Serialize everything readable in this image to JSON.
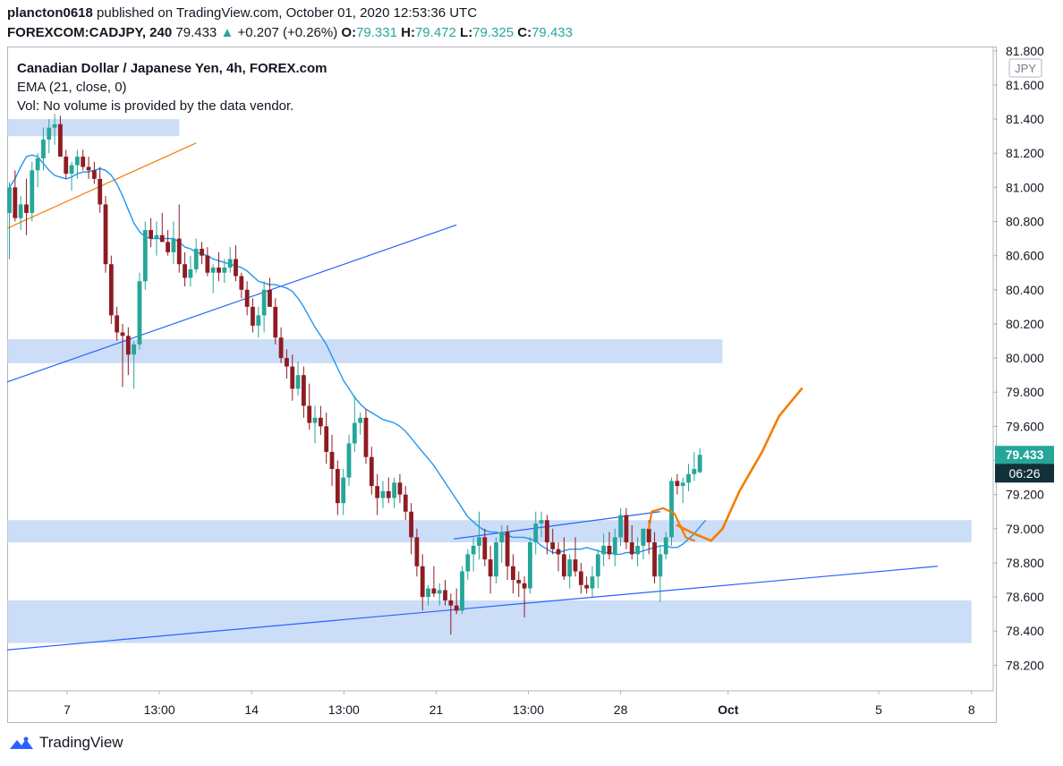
{
  "header": {
    "publisher": "plancton0618",
    "published_text": "published on TradingView.com, October 01, 2020 12:53:36 UTC",
    "symbol": "FOREXCOM:CADJPY, 240",
    "price": "79.433",
    "change": "+0.207 (+0.26%)",
    "open_label": "O:",
    "open": "79.331",
    "high_label": "H:",
    "high": "79.472",
    "low_label": "L:",
    "low": "79.325",
    "close_label": "C:",
    "close": "79.433"
  },
  "legend": {
    "title": "Canadian Dollar / Japanese Yen, 4h, FOREX.com",
    "ema": "EMA (21, close, 0)",
    "volume": "Vol: No volume is provided by the data vendor."
  },
  "brand": {
    "name": "TradingView"
  },
  "colors": {
    "up": "#26a69a",
    "down": "#8e1c22",
    "ema": "#2196f3",
    "zone": "#bbd1f6",
    "trend": "#2962ff",
    "orange": "#f57c00",
    "last_price": "#26a69a",
    "countdown_bg": "#11303a"
  },
  "chart_data": {
    "type": "candlestick",
    "title": "Canadian Dollar / Japanese Yen, 4h, FOREX.com",
    "currency_label": "JPY",
    "last_price": "79.433",
    "countdown": "06:26",
    "ylim": [
      78.05,
      81.82
    ],
    "y_ticks": [
      "81.800",
      "81.600",
      "81.400",
      "81.200",
      "81.000",
      "80.800",
      "80.600",
      "80.400",
      "80.200",
      "80.000",
      "79.800",
      "79.600",
      "79.400",
      "79.200",
      "79.000",
      "78.800",
      "78.600",
      "78.400",
      "78.200"
    ],
    "x_ticks": [
      {
        "label": "7",
        "bar": 10.2
      },
      {
        "label": "13:00",
        "bar": 26.5
      },
      {
        "label": "14",
        "bar": 42.8
      },
      {
        "label": "13:00",
        "bar": 59.1
      },
      {
        "label": "21",
        "bar": 75.4
      },
      {
        "label": "13:00",
        "bar": 91.7
      },
      {
        "label": "28",
        "bar": 108.0
      },
      {
        "label": "Oct",
        "bar": 127.0
      },
      {
        "label": "5",
        "bar": 153.6
      },
      {
        "label": "8",
        "bar": 170.0
      }
    ],
    "x_tick_bold": [
      "Oct"
    ],
    "zones": [
      {
        "from_bar": 0,
        "to_bar": 30,
        "low": 81.3,
        "high": 81.4
      },
      {
        "from_bar": 0,
        "to_bar": 126,
        "low": 79.97,
        "high": 80.11
      },
      {
        "from_bar": 0,
        "to_bar": 170,
        "low": 78.92,
        "high": 79.05
      },
      {
        "from_bar": 0,
        "to_bar": 170,
        "low": 78.33,
        "high": 78.58
      }
    ],
    "trend_lines": [
      {
        "color": "trend",
        "x1": 0,
        "y1": 79.86,
        "x2": 79,
        "y2": 80.78
      },
      {
        "color": "trend",
        "x1": 0,
        "y1": 78.29,
        "x2": 164,
        "y2": 78.78
      },
      {
        "color": "trend",
        "x1": 79,
        "y1": 78.94,
        "x2": 115,
        "y2": 79.1
      },
      {
        "color": "orange",
        "x1": 0,
        "y1": 80.76,
        "x2": 33,
        "y2": 81.26
      }
    ],
    "projection": [
      [
        118,
        79.02
      ],
      [
        121,
        78.97
      ],
      [
        124,
        78.93
      ],
      [
        126,
        79.0
      ],
      [
        129,
        79.22
      ],
      [
        133,
        79.45
      ],
      [
        136,
        79.66
      ],
      [
        140,
        79.82
      ]
    ],
    "hook": [
      [
        113,
        79.0
      ],
      [
        113.5,
        79.1
      ],
      [
        115.5,
        79.12
      ],
      [
        117.5,
        79.09
      ],
      [
        118.5,
        79.02
      ],
      [
        119.5,
        78.95
      ],
      [
        121,
        78.93
      ]
    ],
    "ema": [
      81.0,
      81.05,
      81.12,
      81.18,
      81.19,
      81.18,
      81.14,
      81.1,
      81.07,
      81.06,
      81.05,
      81.06,
      81.08,
      81.09,
      81.09,
      81.1,
      81.11,
      81.1,
      81.07,
      81.02,
      80.95,
      80.87,
      80.79,
      80.74,
      80.71,
      80.7,
      80.7,
      80.7,
      80.7,
      80.7,
      80.68,
      80.65,
      80.64,
      80.62,
      80.61,
      80.6,
      80.58,
      80.57,
      80.56,
      80.55,
      80.54,
      80.53,
      80.51,
      80.48,
      80.45,
      80.44,
      80.43,
      80.43,
      80.42,
      80.41,
      80.39,
      80.35,
      80.3,
      80.24,
      80.18,
      80.13,
      80.08,
      80.01,
      79.94,
      79.87,
      79.82,
      79.77,
      79.73,
      79.7,
      79.68,
      79.66,
      79.64,
      79.63,
      79.62,
      79.6,
      79.57,
      79.53,
      79.49,
      79.45,
      79.41,
      79.37,
      79.32,
      79.27,
      79.22,
      79.17,
      79.12,
      79.07,
      79.04,
      79.01,
      78.99,
      78.98,
      78.98,
      78.97,
      78.96,
      78.95,
      78.95,
      78.95,
      78.94,
      78.93,
      78.9,
      78.88,
      78.86,
      78.86,
      78.87,
      78.88,
      78.88,
      78.88,
      78.89,
      78.88,
      78.87,
      78.86,
      78.86,
      78.85,
      78.85,
      78.86,
      78.86,
      78.86,
      78.87,
      78.88,
      78.89,
      78.9,
      78.9,
      78.89,
      78.89,
      78.91,
      78.94,
      78.97,
      79.01,
      79.05
    ],
    "candles": [
      [
        80.85,
        81.03,
        80.58,
        81.0
      ],
      [
        81.0,
        81.1,
        80.8,
        80.82
      ],
      [
        80.82,
        80.95,
        80.75,
        80.9
      ],
      [
        80.9,
        81.05,
        80.72,
        80.85
      ],
      [
        80.85,
        81.15,
        80.8,
        81.1
      ],
      [
        81.1,
        81.2,
        81.0,
        81.17
      ],
      [
        81.17,
        81.35,
        81.1,
        81.28
      ],
      [
        81.28,
        81.4,
        81.2,
        81.35
      ],
      [
        81.35,
        81.43,
        81.25,
        81.37
      ],
      [
        81.37,
        81.42,
        81.2,
        81.18
      ],
      [
        81.18,
        81.22,
        81.05,
        81.08
      ],
      [
        81.08,
        81.15,
        80.98,
        81.13
      ],
      [
        81.13,
        81.22,
        81.05,
        81.18
      ],
      [
        81.18,
        81.22,
        81.1,
        81.12
      ],
      [
        81.12,
        81.18,
        81.05,
        81.1
      ],
      [
        81.1,
        81.15,
        81.02,
        81.05
      ],
      [
        81.05,
        81.12,
        80.85,
        80.9
      ],
      [
        80.9,
        80.95,
        80.5,
        80.55
      ],
      [
        80.55,
        80.6,
        80.2,
        80.25
      ],
      [
        80.25,
        80.3,
        80.1,
        80.15
      ],
      [
        80.15,
        80.2,
        79.83,
        80.13
      ],
      [
        80.13,
        80.18,
        79.9,
        80.02
      ],
      [
        80.02,
        80.1,
        79.82,
        80.08
      ],
      [
        80.08,
        80.5,
        80.05,
        80.45
      ],
      [
        80.45,
        80.8,
        80.4,
        80.75
      ],
      [
        80.75,
        80.82,
        80.65,
        80.7
      ],
      [
        80.7,
        80.8,
        80.6,
        80.72
      ],
      [
        80.72,
        80.85,
        80.68,
        80.68
      ],
      [
        80.68,
        80.75,
        80.6,
        80.62
      ],
      [
        80.62,
        80.8,
        80.55,
        80.7
      ],
      [
        80.7,
        80.9,
        80.5,
        80.55
      ],
      [
        80.55,
        80.62,
        80.42,
        80.47
      ],
      [
        80.47,
        80.6,
        80.42,
        80.52
      ],
      [
        80.52,
        80.7,
        80.5,
        80.64
      ],
      [
        80.64,
        80.68,
        80.55,
        80.6
      ],
      [
        80.6,
        80.65,
        80.48,
        80.5
      ],
      [
        80.5,
        80.55,
        80.38,
        80.53
      ],
      [
        80.53,
        80.62,
        80.45,
        80.5
      ],
      [
        80.5,
        80.58,
        80.44,
        80.53
      ],
      [
        80.53,
        80.65,
        80.5,
        80.58
      ],
      [
        80.58,
        80.66,
        80.45,
        80.48
      ],
      [
        80.48,
        80.5,
        80.35,
        80.4
      ],
      [
        80.4,
        80.45,
        80.25,
        80.3
      ],
      [
        80.3,
        80.35,
        80.15,
        80.19
      ],
      [
        80.19,
        80.3,
        80.12,
        80.25
      ],
      [
        80.25,
        80.45,
        80.15,
        80.4
      ],
      [
        80.4,
        80.47,
        80.3,
        80.3
      ],
      [
        80.3,
        80.35,
        80.08,
        80.12
      ],
      [
        80.12,
        80.18,
        79.97,
        80.0
      ],
      [
        80.0,
        80.05,
        79.88,
        79.95
      ],
      [
        79.95,
        80.02,
        79.75,
        79.82
      ],
      [
        79.82,
        79.98,
        79.78,
        79.9
      ],
      [
        79.9,
        79.95,
        79.65,
        79.72
      ],
      [
        79.72,
        79.85,
        79.58,
        79.62
      ],
      [
        79.62,
        79.72,
        79.5,
        79.65
      ],
      [
        79.65,
        79.72,
        79.55,
        79.6
      ],
      [
        79.6,
        79.68,
        79.38,
        79.45
      ],
      [
        79.45,
        79.55,
        79.25,
        79.35
      ],
      [
        79.35,
        79.4,
        79.08,
        79.15
      ],
      [
        79.15,
        79.35,
        79.08,
        79.3
      ],
      [
        79.3,
        79.55,
        79.25,
        79.5
      ],
      [
        79.5,
        79.78,
        79.45,
        79.62
      ],
      [
        79.62,
        79.68,
        79.55,
        79.65
      ],
      [
        79.65,
        79.7,
        79.38,
        79.42
      ],
      [
        79.42,
        79.48,
        79.2,
        79.25
      ],
      [
        79.25,
        79.32,
        79.08,
        79.18
      ],
      [
        79.18,
        79.28,
        79.12,
        79.22
      ],
      [
        79.22,
        79.3,
        79.15,
        79.18
      ],
      [
        79.18,
        79.3,
        79.12,
        79.27
      ],
      [
        79.27,
        79.32,
        79.15,
        79.2
      ],
      [
        79.2,
        79.25,
        79.05,
        79.1
      ],
      [
        79.1,
        79.15,
        78.85,
        78.95
      ],
      [
        78.95,
        79.0,
        78.72,
        78.78
      ],
      [
        78.78,
        78.85,
        78.52,
        78.6
      ],
      [
        78.6,
        78.67,
        78.55,
        78.65
      ],
      [
        78.65,
        78.78,
        78.6,
        78.62
      ],
      [
        78.62,
        78.68,
        78.55,
        78.64
      ],
      [
        78.64,
        78.7,
        78.55,
        78.58
      ],
      [
        78.58,
        78.62,
        78.38,
        78.55
      ],
      [
        78.55,
        78.65,
        78.5,
        78.52
      ],
      [
        78.52,
        78.78,
        78.5,
        78.75
      ],
      [
        78.75,
        78.88,
        78.7,
        78.85
      ],
      [
        78.85,
        78.95,
        78.75,
        78.9
      ],
      [
        78.9,
        79.1,
        78.82,
        78.95
      ],
      [
        78.95,
        79.0,
        78.78,
        78.82
      ],
      [
        78.82,
        78.9,
        78.62,
        78.72
      ],
      [
        78.72,
        78.95,
        78.68,
        78.92
      ],
      [
        78.92,
        79.02,
        78.8,
        78.98
      ],
      [
        78.98,
        79.02,
        78.7,
        78.78
      ],
      [
        78.78,
        78.85,
        78.62,
        78.7
      ],
      [
        78.7,
        78.75,
        78.6,
        78.68
      ],
      [
        78.68,
        78.72,
        78.48,
        78.65
      ],
      [
        78.65,
        78.95,
        78.62,
        78.92
      ],
      [
        78.92,
        79.1,
        78.85,
        79.03
      ],
      [
        79.03,
        79.1,
        78.95,
        79.05
      ],
      [
        79.05,
        79.08,
        78.85,
        78.92
      ],
      [
        78.92,
        79.0,
        78.85,
        78.88
      ],
      [
        78.88,
        78.92,
        78.75,
        78.85
      ],
      [
        78.85,
        78.95,
        78.7,
        78.72
      ],
      [
        78.72,
        78.85,
        78.65,
        78.82
      ],
      [
        78.82,
        78.95,
        78.72,
        78.75
      ],
      [
        78.75,
        78.8,
        78.62,
        78.67
      ],
      [
        78.67,
        78.72,
        78.62,
        78.65
      ],
      [
        78.65,
        78.78,
        78.6,
        78.72
      ],
      [
        78.72,
        78.88,
        78.65,
        78.85
      ],
      [
        78.85,
        78.97,
        78.78,
        78.9
      ],
      [
        78.9,
        78.98,
        78.82,
        78.85
      ],
      [
        78.85,
        79.0,
        78.78,
        78.95
      ],
      [
        78.95,
        79.12,
        78.9,
        79.08
      ],
      [
        79.08,
        79.12,
        78.88,
        78.92
      ],
      [
        78.92,
        79.02,
        78.82,
        78.85
      ],
      [
        78.85,
        78.95,
        78.78,
        78.9
      ],
      [
        78.9,
        79.0,
        78.82,
        79.0
      ],
      [
        79.0,
        79.05,
        78.85,
        78.92
      ],
      [
        78.92,
        78.98,
        78.68,
        78.72
      ],
      [
        78.72,
        78.9,
        78.57,
        78.85
      ],
      [
        78.85,
        78.98,
        78.82,
        78.95
      ],
      [
        78.95,
        79.3,
        78.9,
        79.28
      ],
      [
        79.28,
        79.32,
        79.2,
        79.25
      ],
      [
        79.25,
        79.3,
        79.15,
        79.27
      ],
      [
        79.27,
        79.38,
        79.22,
        79.32
      ],
      [
        79.32,
        79.45,
        79.28,
        79.35
      ],
      [
        79.331,
        79.472,
        79.325,
        79.433
      ]
    ]
  }
}
